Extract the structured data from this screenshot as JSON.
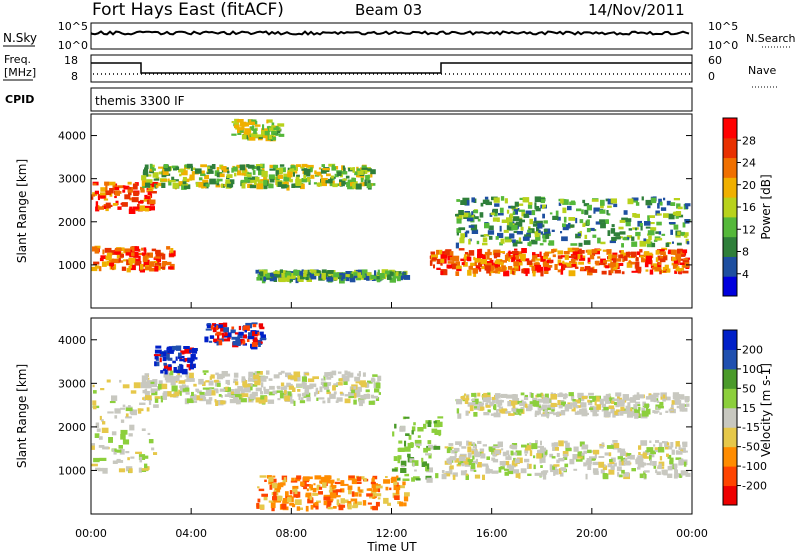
{
  "header": {
    "station": "Fort Hays East (fitACF)",
    "beam": "Beam 03",
    "date": "14/Nov/2011"
  },
  "sky_panel": {
    "left_label": "N.Sky",
    "left_ticks": [
      "10^5",
      "10^0"
    ],
    "right_label": "N.Search",
    "right_ticks": [
      "10^5",
      "10^0"
    ]
  },
  "freq_panel": {
    "left_label_1": "Freq.",
    "left_label_2": "[MHz]",
    "left_ticks": [
      "18",
      "8"
    ],
    "right_label": "Nave",
    "right_ticks": [
      "60",
      "0"
    ]
  },
  "cpid_panel": {
    "left_label": "CPID",
    "program": "themis 3300 IF"
  },
  "colors": {
    "power_scale": [
      "#0000dd",
      "#1e4fa0",
      "#2f7f3a",
      "#55b83a",
      "#b8d21c",
      "#f0b000",
      "#f07000",
      "#e83000",
      "#ff0000"
    ],
    "velocity_scale": [
      "#ee0000",
      "#ff4400",
      "#ff8c00",
      "#e6c84a",
      "#c8c8c0",
      "#8ccf3c",
      "#4a9a2a",
      "#2050b0",
      "#0020c8"
    ]
  },
  "chart_data": [
    {
      "type": "heatmap",
      "panel": "power",
      "ylabel": "Slant Range [km]",
      "yticks": [
        "1000",
        "2000",
        "3000",
        "4000"
      ],
      "ylim": [
        0,
        4500
      ],
      "xlim": [
        0,
        24
      ],
      "colorbar_label": "Power [dB]",
      "colorbar_ticks": [
        "28",
        "24",
        "20",
        "16",
        "12",
        "8",
        "4"
      ],
      "colorbar_range": [
        0,
        32
      ],
      "echo_bands": [
        {
          "t0": 0,
          "t1": 3.2,
          "r0": 900,
          "r1": 1450,
          "level": "high"
        },
        {
          "t0": 0,
          "t1": 2.5,
          "r0": 2300,
          "r1": 2950,
          "level": "high"
        },
        {
          "t0": 2.0,
          "t1": 11.2,
          "r0": 2850,
          "r1": 3350,
          "level": "mid"
        },
        {
          "t0": 5.5,
          "t1": 7.5,
          "r0": 3950,
          "r1": 4400,
          "level": "mid"
        },
        {
          "t0": 13.5,
          "t1": 24,
          "r0": 850,
          "r1": 1400,
          "level": "high"
        },
        {
          "t0": 14.5,
          "t1": 24,
          "r0": 1500,
          "r1": 2600,
          "level": "low"
        },
        {
          "t0": 6.5,
          "t1": 12.5,
          "r0": 700,
          "r1": 900,
          "level": "low"
        }
      ]
    },
    {
      "type": "heatmap",
      "panel": "velocity",
      "ylabel": "Slant Range [km]",
      "yticks": [
        "1000",
        "2000",
        "3000",
        "4000"
      ],
      "ylim": [
        0,
        4500
      ],
      "xlim": [
        0,
        24
      ],
      "xlabel": "Time UT",
      "xticks": [
        "00:00",
        "04:00",
        "08:00",
        "12:00",
        "16:00",
        "20:00",
        "00:00"
      ],
      "colorbar_label": "Velocity [m s-1]",
      "colorbar_ticks": [
        "200",
        "100",
        "50",
        "15",
        "-15",
        "-50",
        "-100",
        "-200"
      ],
      "colorbar_range": [
        -250,
        250
      ],
      "echo_bands": [
        {
          "t0": 0,
          "t1": 2.5,
          "r0": 1000,
          "r1": 3100,
          "level": "near-zero"
        },
        {
          "t0": 2.0,
          "t1": 11.5,
          "r0": 2600,
          "r1": 3300,
          "level": "near-zero"
        },
        {
          "t0": 2.5,
          "t1": 4.2,
          "r0": 3300,
          "r1": 3900,
          "level": "strong-positive"
        },
        {
          "t0": 4.5,
          "t1": 6.8,
          "r0": 3900,
          "r1": 4400,
          "level": "mixed"
        },
        {
          "t0": 12.0,
          "t1": 14.0,
          "r0": 800,
          "r1": 2300,
          "level": "moderate-positive"
        },
        {
          "t0": 14.0,
          "t1": 24,
          "r0": 900,
          "r1": 1700,
          "level": "near-zero"
        },
        {
          "t0": 14.5,
          "t1": 24,
          "r0": 2300,
          "r1": 2800,
          "level": "near-zero"
        },
        {
          "t0": 6.5,
          "t1": 12.5,
          "r0": 150,
          "r1": 900,
          "level": "negative"
        }
      ]
    }
  ]
}
